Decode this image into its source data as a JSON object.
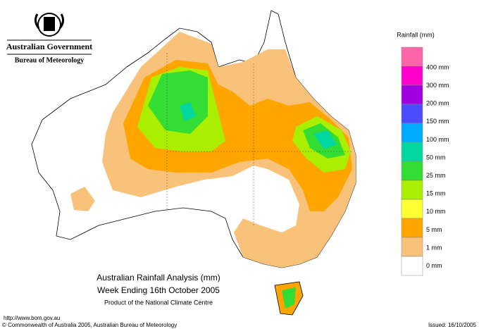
{
  "header": {
    "organisation": "Australian Government",
    "bureau": "Bureau of Meteorology"
  },
  "legend": {
    "title": "Rainfall (mm)",
    "labels": [
      "400 mm",
      "300 mm",
      "200 mm",
      "150 mm",
      "100 mm",
      "50 mm",
      "25 mm",
      "15 mm",
      "10 mm",
      "5 mm",
      "1 mm",
      "0 mm"
    ],
    "colors": [
      "#ff66aa",
      "#ff00cc",
      "#a000e0",
      "#4b4bff",
      "#00aaff",
      "#00d8a0",
      "#33dd33",
      "#aaee00",
      "#ffff33",
      "#ffa500",
      "#f8c27a",
      "#ffffff"
    ]
  },
  "map": {
    "title": "Australian Rainfall Analysis (mm)",
    "subtitle": "Week Ending 16th October 2005",
    "note": "Product of the National Climate Centre"
  },
  "footer": {
    "url": "http://www.bom.gov.au",
    "copyright": "© Commonwealth of Australia 2005, Australian Bureau of Meteorology",
    "issued": "Issued: 16/10/2005"
  }
}
